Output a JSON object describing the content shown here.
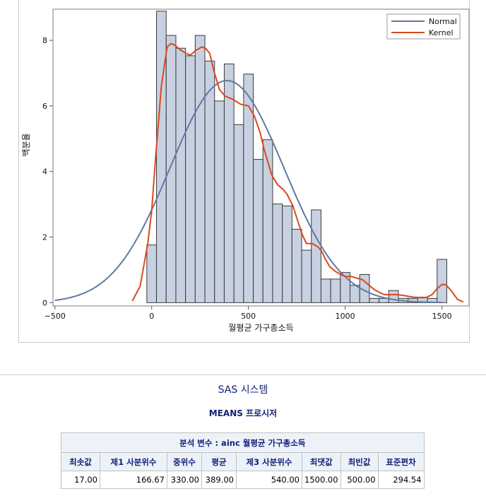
{
  "chart_data": {
    "type": "bar",
    "subtype": "histogram",
    "xlabel": "월평균 가구총소득",
    "ylabel": "백분율",
    "xlim": [
      -510,
      1640
    ],
    "ylim": [
      -0.1,
      8.95
    ],
    "xticks": [
      -500,
      0,
      500,
      1000,
      1500
    ],
    "yticks": [
      0,
      2,
      4,
      6,
      8
    ],
    "bin_width": 50,
    "bin_starts": [
      -25,
      25,
      75,
      125,
      175,
      225,
      275,
      325,
      375,
      425,
      475,
      525,
      575,
      625,
      675,
      725,
      775,
      825,
      875,
      925,
      975,
      1025,
      1075,
      1125,
      1175,
      1225,
      1275,
      1325,
      1375,
      1425,
      1475
    ],
    "values": [
      1.76,
      8.89,
      8.15,
      7.76,
      7.53,
      8.15,
      7.37,
      6.15,
      7.28,
      5.43,
      6.97,
      4.37,
      4.97,
      3.01,
      2.95,
      2.24,
      1.6,
      2.83,
      0.72,
      0.72,
      0.92,
      0.53,
      0.86,
      0.13,
      0.13,
      0.37,
      0.13,
      0.13,
      0.17,
      0.13,
      1.32
    ],
    "series": [
      {
        "name": "Normal",
        "color": "#6179a3",
        "mean": 389,
        "sd": 294.54
      },
      {
        "name": "Kernel",
        "color": "#d84a1e",
        "x": [
          -100,
          -60,
          -20,
          0,
          20,
          50,
          80,
          100,
          120,
          150,
          180,
          200,
          230,
          260,
          280,
          300,
          320,
          350,
          380,
          420,
          460,
          500,
          530,
          560,
          580,
          600,
          620,
          650,
          680,
          700,
          730,
          760,
          780,
          800,
          830,
          860,
          880,
          900,
          920,
          950,
          980,
          1000,
          1030,
          1060,
          1090,
          1120,
          1150,
          1180,
          1200,
          1230,
          1260,
          1300,
          1350,
          1400,
          1420,
          1450,
          1470,
          1500,
          1520,
          1550,
          1580,
          1610
        ],
        "y": [
          0.05,
          0.5,
          1.8,
          2.8,
          4.4,
          6.6,
          7.8,
          7.9,
          7.85,
          7.7,
          7.6,
          7.55,
          7.7,
          7.8,
          7.75,
          7.6,
          7.1,
          6.5,
          6.3,
          6.2,
          6.05,
          6.0,
          5.7,
          5.2,
          4.7,
          4.3,
          3.9,
          3.6,
          3.45,
          3.3,
          2.95,
          2.4,
          2.05,
          1.8,
          1.8,
          1.7,
          1.55,
          1.3,
          1.1,
          0.95,
          0.85,
          0.8,
          0.8,
          0.75,
          0.7,
          0.55,
          0.4,
          0.3,
          0.25,
          0.24,
          0.25,
          0.22,
          0.17,
          0.15,
          0.16,
          0.25,
          0.4,
          0.55,
          0.55,
          0.35,
          0.1,
          0.02
        ]
      }
    ],
    "legend_position": "top-right",
    "grid": false,
    "colors": {
      "bar_fill": "#c7d1e1",
      "bar_stroke": "#3a3a3a",
      "normal": "#6179a3",
      "kernel": "#d84a1e"
    }
  },
  "report": {
    "system_title": "SAS 시스템",
    "procedure_title": "MEANS 프로시저",
    "caption": "분석 변수 : ainc 월평균 가구총소득",
    "columns": [
      "최솟값",
      "제1 사분위수",
      "중위수",
      "평균",
      "제3 사분위수",
      "최댓값",
      "최빈값",
      "표준편차"
    ],
    "values": [
      "17.00",
      "166.67",
      "330.00",
      "389.00",
      "540.00",
      "1500.00",
      "500.00",
      "294.54"
    ]
  }
}
